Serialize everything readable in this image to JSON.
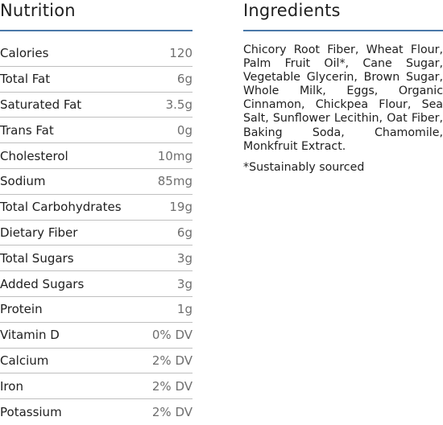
{
  "nutrition": {
    "title": "Nutrition",
    "rows": [
      {
        "label": "Calories",
        "value": "120"
      },
      {
        "label": "Total Fat",
        "value": "6g"
      },
      {
        "label": "Saturated Fat",
        "value": "3.5g"
      },
      {
        "label": "Trans Fat",
        "value": "0g"
      },
      {
        "label": "Cholesterol",
        "value": "10mg"
      },
      {
        "label": "Sodium",
        "value": "85mg"
      },
      {
        "label": "Total Carbohydrates",
        "value": "19g"
      },
      {
        "label": "Dietary Fiber",
        "value": "6g"
      },
      {
        "label": "Total Sugars",
        "value": "3g"
      },
      {
        "label": "Added Sugars",
        "value": "3g"
      },
      {
        "label": "Protein",
        "value": "1g"
      },
      {
        "label": "Vitamin D",
        "value": "0% DV"
      },
      {
        "label": "Calcium",
        "value": "2% DV"
      },
      {
        "label": "Iron",
        "value": "2% DV"
      },
      {
        "label": "Potassium",
        "value": "2% DV"
      }
    ]
  },
  "ingredients": {
    "title": "Ingredients",
    "text": "Chicory Root Fiber, Wheat Flour, Palm Fruit Oil*, Cane Sugar, Vegetable Glycerin, Brown Sugar, Whole Milk, Eggs, Organic Cinnamon, Chickpea Flour, Sea Salt, Sunflower Lecithin, Oat Fiber, Baking Soda, Chamomile, Monkfruit Extract.",
    "note": "*Sustainably sourced"
  },
  "colors": {
    "accent": "#4a78a8",
    "text": "#1f1f1f",
    "value_text": "#6f6f6f",
    "divider": "#bfbfbf"
  }
}
